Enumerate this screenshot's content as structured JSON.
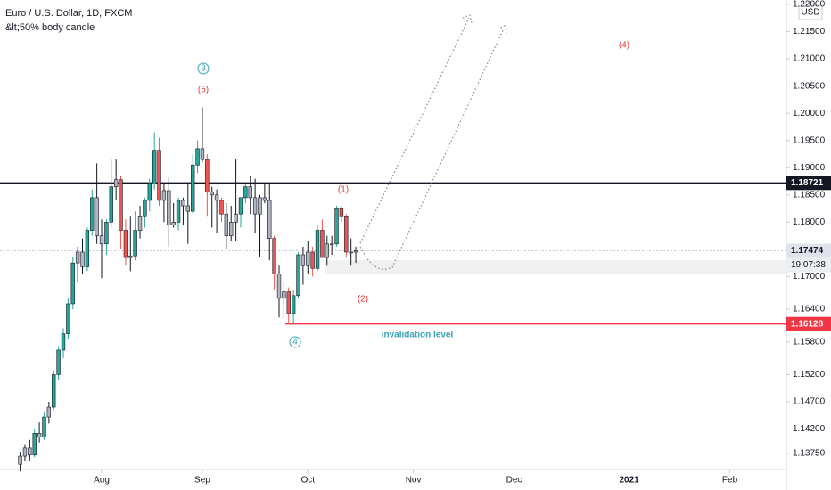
{
  "chart_data": {
    "type": "candlestick",
    "title": "Euro / U.S. Dollar, 1D, FXCM",
    "subtitle": "&lt;50% body candle",
    "currency": "USD",
    "countdown": "19:07:38",
    "colors": {
      "up": "#26a69a",
      "down": "#ef5350",
      "small": "#b2b5be",
      "outline": "#131722"
    },
    "x": [
      -17,
      -16,
      -15,
      -14,
      -13,
      -12,
      -11,
      -10,
      -9,
      -8,
      -7,
      -6,
      -5,
      -4,
      -3,
      -2,
      -1,
      0,
      1,
      2,
      3,
      4,
      5,
      6,
      7,
      8,
      9,
      10,
      11,
      12,
      13,
      14,
      15,
      16,
      17,
      18,
      19,
      20,
      21,
      22,
      23,
      24,
      25,
      26,
      27,
      28,
      29,
      30,
      31,
      32,
      33,
      34,
      35,
      36,
      37,
      38,
      39,
      40,
      41,
      42,
      43,
      44,
      45,
      46,
      47,
      48,
      49,
      50,
      51,
      52,
      53
    ],
    "open": [
      1.1355,
      1.137,
      1.1385,
      1.1372,
      1.1412,
      1.1405,
      1.1442,
      1.146,
      1.152,
      1.1565,
      1.1595,
      1.165,
      1.1725,
      1.1745,
      1.1718,
      1.1785,
      1.1845,
      1.1775,
      1.176,
      1.18,
      1.1865,
      1.1878,
      1.1785,
      1.1735,
      1.1738,
      1.1785,
      1.181,
      1.184,
      1.187,
      1.1932,
      1.184,
      1.1858,
      1.1795,
      1.18,
      1.184,
      1.183,
      1.182,
      1.1905,
      1.1935,
      1.1915,
      1.1855,
      1.185,
      1.184,
      1.1815,
      1.1775,
      1.18,
      1.1815,
      1.1845,
      1.1865,
      1.1845,
      1.1815,
      1.1845,
      1.184,
      1.177,
      1.1705,
      1.166,
      1.1672,
      1.1632,
      1.1665,
      1.174,
      1.172,
      1.1745,
      1.1715,
      1.1785,
      1.1735,
      1.176,
      1.176,
      1.1825,
      1.181,
      1.1745,
      1.1745
    ],
    "high": [
      1.1378,
      1.1392,
      1.14,
      1.142,
      1.1432,
      1.145,
      1.147,
      1.1528,
      1.1572,
      1.1605,
      1.166,
      1.1735,
      1.1755,
      1.177,
      1.179,
      1.186,
      1.1908,
      1.1805,
      1.1805,
      1.1915,
      1.1915,
      1.1885,
      1.1805,
      1.181,
      1.182,
      1.183,
      1.1845,
      1.188,
      1.1965,
      1.1955,
      1.187,
      1.1882,
      1.1835,
      1.1845,
      1.1845,
      1.187,
      1.1925,
      1.195,
      1.2011,
      1.1925,
      1.1865,
      1.186,
      1.1845,
      1.1835,
      1.183,
      1.1915,
      1.1845,
      1.187,
      1.1885,
      1.188,
      1.185,
      1.187,
      1.187,
      1.1775,
      1.172,
      1.169,
      1.168,
      1.1675,
      1.1745,
      1.1755,
      1.1765,
      1.1755,
      1.1795,
      1.1805,
      1.1775,
      1.1775,
      1.183,
      1.183,
      1.1815,
      1.177,
      1.1755
    ],
    "low": [
      1.1342,
      1.136,
      1.1362,
      1.1368,
      1.1395,
      1.14,
      1.143,
      1.1455,
      1.151,
      1.155,
      1.1585,
      1.164,
      1.169,
      1.1705,
      1.171,
      1.1775,
      1.176,
      1.1697,
      1.174,
      1.179,
      1.184,
      1.175,
      1.172,
      1.171,
      1.173,
      1.177,
      1.179,
      1.182,
      1.186,
      1.183,
      1.18,
      1.1755,
      1.179,
      1.1785,
      1.1795,
      1.176,
      1.1815,
      1.189,
      1.191,
      1.181,
      1.179,
      1.178,
      1.18,
      1.175,
      1.1765,
      1.1765,
      1.179,
      1.1835,
      1.1815,
      1.178,
      1.1735,
      1.1835,
      1.173,
      1.1675,
      1.1625,
      1.1625,
      1.1612,
      1.1615,
      1.166,
      1.1685,
      1.1705,
      1.17,
      1.171,
      1.1735,
      1.172,
      1.174,
      1.1755,
      1.18,
      1.1735,
      1.172,
      1.1725
    ],
    "close": [
      1.137,
      1.1385,
      1.1372,
      1.1412,
      1.1405,
      1.1442,
      1.146,
      1.152,
      1.1565,
      1.1595,
      1.165,
      1.1725,
      1.1745,
      1.1718,
      1.1785,
      1.1845,
      1.1775,
      1.176,
      1.18,
      1.1865,
      1.1878,
      1.1785,
      1.1735,
      1.1738,
      1.1785,
      1.181,
      1.184,
      1.187,
      1.1932,
      1.184,
      1.1858,
      1.1795,
      1.18,
      1.184,
      1.183,
      1.182,
      1.1905,
      1.1935,
      1.1915,
      1.1855,
      1.185,
      1.184,
      1.1815,
      1.1775,
      1.18,
      1.1815,
      1.1845,
      1.1865,
      1.1845,
      1.1815,
      1.1845,
      1.184,
      1.177,
      1.1705,
      1.166,
      1.1672,
      1.1632,
      1.1665,
      1.174,
      1.172,
      1.1745,
      1.1715,
      1.1785,
      1.1735,
      1.176,
      1.176,
      1.1825,
      1.181,
      1.1745,
      1.1745,
      1.17474
    ],
    "xlim": [
      -21.2,
      142.8
    ],
    "xticks": [
      {
        "value": 0,
        "label": "Aug"
      },
      {
        "value": 21,
        "label": "Sep"
      },
      {
        "value": 43,
        "label": "Oct"
      },
      {
        "value": 65,
        "label": "Nov"
      },
      {
        "value": 86,
        "label": "Dec"
      },
      {
        "value": 110,
        "label": "2021"
      },
      {
        "value": 131,
        "label": "Feb"
      }
    ],
    "ylim": [
      1.13455,
      1.22082
    ],
    "yticks": [
      {
        "value": 1.22,
        "label": "1.22000"
      },
      {
        "value": 1.215,
        "label": "1.21500"
      },
      {
        "value": 1.21,
        "label": "1.21000"
      },
      {
        "value": 1.205,
        "label": "1.20500"
      },
      {
        "value": 1.2,
        "label": "1.20000"
      },
      {
        "value": 1.195,
        "label": "1.19500"
      },
      {
        "value": 1.19,
        "label": "1.19000"
      },
      {
        "value": 1.185,
        "label": "1.18500"
      },
      {
        "value": 1.18,
        "label": "1.18000"
      },
      {
        "value": 1.17,
        "label": "1.17000"
      },
      {
        "value": 1.164,
        "label": "1.16400"
      },
      {
        "value": 1.158,
        "label": "1.15800"
      },
      {
        "value": 1.152,
        "label": "1.15200"
      },
      {
        "value": 1.147,
        "label": "1.14700"
      },
      {
        "value": 1.142,
        "label": "1.14200"
      },
      {
        "value": 1.1375,
        "label": "1.13750"
      }
    ],
    "price_lines": [
      {
        "value": 1.18721,
        "color": "#131722",
        "style": "solid"
      },
      {
        "value": 1.16128,
        "color": "#f23645",
        "style": "solid"
      },
      {
        "value": 1.17474,
        "color": "#c9ccd3",
        "style": "dotted"
      }
    ],
    "annotations": [
      "3",
      "(5)",
      "(1)",
      "(2)",
      "(4)",
      "4",
      "invalidation level"
    ]
  }
}
